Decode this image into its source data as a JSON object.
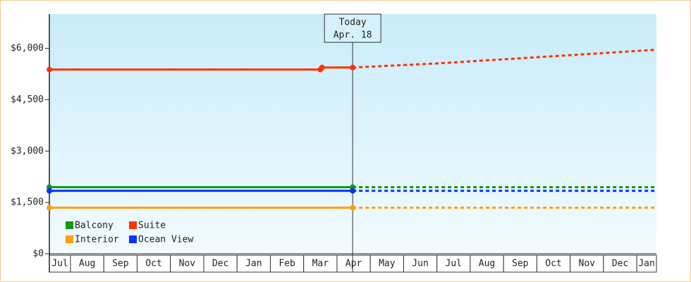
{
  "chart_data": {
    "type": "line",
    "categories": [
      "Jul",
      "Aug",
      "Sep",
      "Oct",
      "Nov",
      "Dec",
      "Jan",
      "Feb",
      "Mar",
      "Apr",
      "May",
      "Jun",
      "Jul",
      "Aug",
      "Sep",
      "Oct",
      "Nov",
      "Dec",
      "Jan"
    ],
    "xlim": [
      0.365,
      18.59
    ],
    "ylim": [
      0,
      7000
    ],
    "yticks": [
      {
        "value": 0,
        "label": "$0"
      },
      {
        "value": 1500,
        "label": "$1,500"
      },
      {
        "value": 3000,
        "label": "$3,000"
      },
      {
        "value": 4500,
        "label": "$4,500"
      },
      {
        "value": 6000,
        "label": "$6,000"
      }
    ],
    "annotation": {
      "x": 9.47,
      "lines": [
        "Today",
        "Apr. 18"
      ]
    },
    "series": [
      {
        "name": "Balcony",
        "color": "#119911",
        "x": [
          0.365,
          9.47
        ],
        "values": [
          1945,
          1945
        ],
        "forecast": {
          "x": [
            9.47,
            18.59
          ],
          "values": [
            1945,
            1945
          ]
        }
      },
      {
        "name": "Suite",
        "color": "#ff3300",
        "x": [
          0.365,
          8.5,
          8.55,
          9.47
        ],
        "values": [
          5380,
          5380,
          5440,
          5440
        ],
        "forecast": {
          "x": [
            9.47,
            12,
            15,
            18.59
          ],
          "values": [
            5440,
            5560,
            5740,
            5960
          ]
        }
      },
      {
        "name": "Interior",
        "color": "#ff9f00",
        "x": [
          0.365,
          9.47
        ],
        "values": [
          1345,
          1345
        ],
        "forecast": {
          "x": [
            9.47,
            18.59
          ],
          "values": [
            1345,
            1345
          ]
        }
      },
      {
        "name": "Ocean View",
        "color": "#0033ff",
        "x": [
          0.365,
          9.47
        ],
        "values": [
          1840,
          1840
        ],
        "forecast": {
          "x": [
            9.47,
            18.59
          ],
          "values": [
            1840,
            1840
          ]
        }
      }
    ]
  }
}
